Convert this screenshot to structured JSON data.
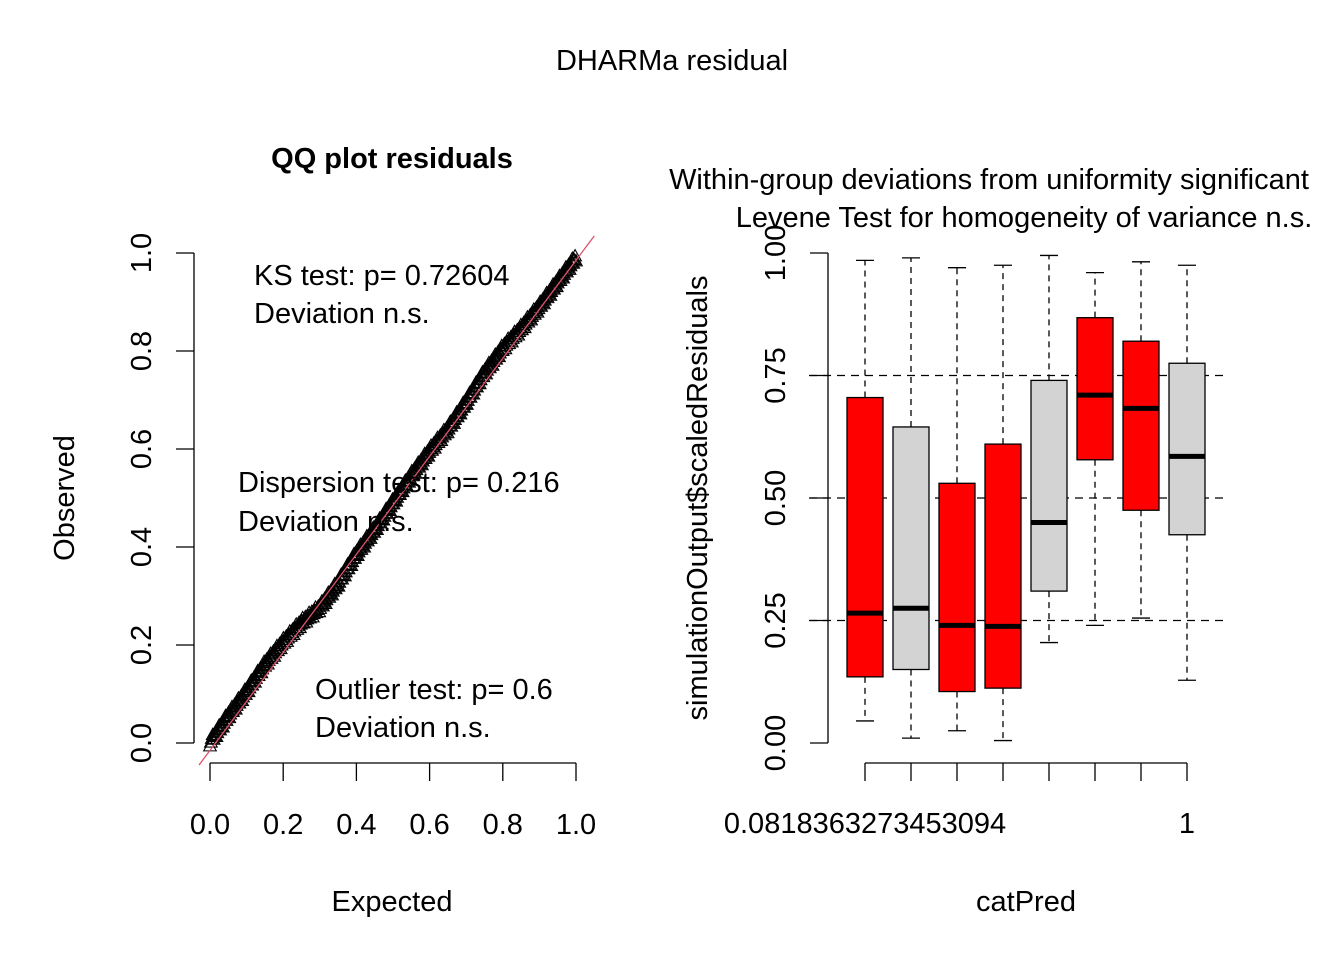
{
  "figure": {
    "title": "DHARMa residual"
  },
  "chart_data": [
    {
      "type": "scatter",
      "title": "QQ plot residuals",
      "xlabel": "Expected",
      "ylabel": "Observed",
      "xlim": [
        0,
        1
      ],
      "ylim": [
        0,
        1
      ],
      "x_ticks": [
        "0.0",
        "0.2",
        "0.4",
        "0.6",
        "0.8",
        "1.0"
      ],
      "y_ticks": [
        "0.0",
        "0.2",
        "0.4",
        "0.6",
        "0.8",
        "1.0"
      ],
      "reference_line": {
        "slope": 1,
        "intercept": 0,
        "color": "#DF536B"
      },
      "point_marker": "open-triangle",
      "qq_curve": [
        [
          0.0,
          0.0
        ],
        [
          0.05,
          0.055
        ],
        [
          0.1,
          0.105
        ],
        [
          0.15,
          0.16
        ],
        [
          0.2,
          0.205
        ],
        [
          0.25,
          0.245
        ],
        [
          0.3,
          0.275
        ],
        [
          0.35,
          0.325
        ],
        [
          0.4,
          0.385
        ],
        [
          0.45,
          0.435
        ],
        [
          0.5,
          0.49
        ],
        [
          0.55,
          0.545
        ],
        [
          0.6,
          0.595
        ],
        [
          0.65,
          0.64
        ],
        [
          0.7,
          0.695
        ],
        [
          0.75,
          0.755
        ],
        [
          0.8,
          0.805
        ],
        [
          0.85,
          0.845
        ],
        [
          0.9,
          0.89
        ],
        [
          0.95,
          0.94
        ],
        [
          1.0,
          0.99
        ]
      ],
      "annotations": {
        "ks": [
          "KS test: p= 0.72604",
          "Deviation  n.s."
        ],
        "dispersion": [
          "Dispersion test: p= 0.216",
          "Deviation  n.s."
        ],
        "outlier": [
          "Outlier test: p= 0.6",
          "Deviation  n.s."
        ]
      }
    },
    {
      "type": "boxplot",
      "title_lines": [
        {
          "text": "Within-group deviations from uniformity significant",
          "color": "#FF0000"
        },
        {
          "text": "Levene Test for homogeneity of variance n.s.",
          "color": "#000000"
        }
      ],
      "xlabel": "catPred",
      "ylabel": "simulationOutput$scaledResiduals",
      "ylim": [
        0,
        1
      ],
      "y_ticks": [
        "0.00",
        "0.25",
        "0.50",
        "0.75",
        "1.00"
      ],
      "hlines": [
        0.25,
        0.5,
        0.75
      ],
      "x_tick_labels": [
        "0.0818363273453094",
        "1"
      ],
      "colors": {
        "significant": "#FF0000",
        "ns": "#D3D3D3"
      },
      "boxes": [
        {
          "min": 0.045,
          "q1": 0.135,
          "median": 0.265,
          "q3": 0.705,
          "max": 0.985,
          "significant": true
        },
        {
          "min": 0.01,
          "q1": 0.15,
          "median": 0.275,
          "q3": 0.645,
          "max": 0.99,
          "significant": false
        },
        {
          "min": 0.025,
          "q1": 0.105,
          "median": 0.24,
          "q3": 0.53,
          "max": 0.97,
          "significant": true
        },
        {
          "min": 0.005,
          "q1": 0.112,
          "median": 0.238,
          "q3": 0.61,
          "max": 0.975,
          "significant": true
        },
        {
          "min": 0.205,
          "q1": 0.31,
          "median": 0.45,
          "q3": 0.74,
          "max": 0.995,
          "significant": false
        },
        {
          "min": 0.24,
          "q1": 0.578,
          "median": 0.71,
          "q3": 0.868,
          "max": 0.96,
          "significant": true
        },
        {
          "min": 0.255,
          "q1": 0.475,
          "median": 0.683,
          "q3": 0.82,
          "max": 0.982,
          "significant": true
        },
        {
          "min": 0.128,
          "q1": 0.425,
          "median": 0.585,
          "q3": 0.775,
          "max": 0.975,
          "significant": false
        }
      ]
    }
  ]
}
